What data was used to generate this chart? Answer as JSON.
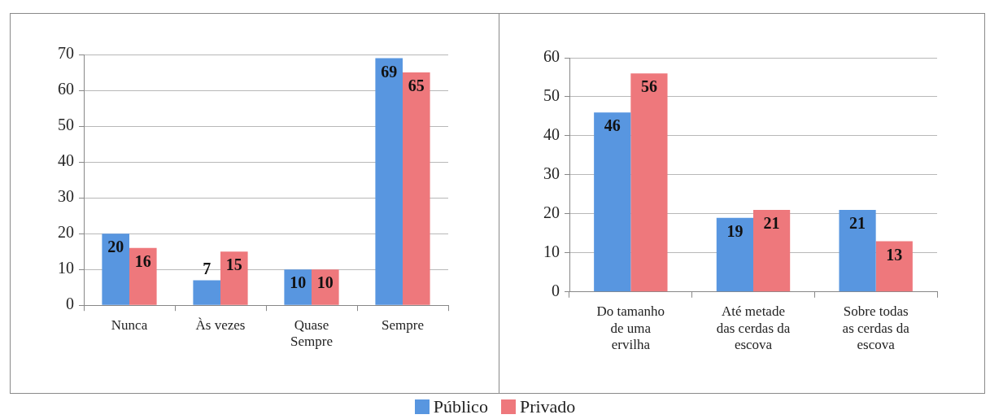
{
  "chart_data": [
    {
      "type": "bar",
      "categories": [
        "Nunca",
        "Às vezes",
        "Quase Sempre",
        "Sempre"
      ],
      "series": [
        {
          "name": "Público",
          "color": "#5896e0",
          "values": [
            20,
            7,
            10,
            69
          ]
        },
        {
          "name": "Privado",
          "color": "#ee787c",
          "values": [
            16,
            15,
            10,
            65
          ]
        }
      ],
      "ylim": [
        0,
        70
      ],
      "yticks": [
        0,
        10,
        20,
        30,
        40,
        50,
        60,
        70
      ],
      "grid": "y",
      "data_labels": true,
      "legend": "bottom"
    },
    {
      "type": "bar",
      "categories": [
        "Do tamanho de uma ervilha",
        "Até metade das cerdas da escova",
        "Sobre todas as cerdas da escova"
      ],
      "series": [
        {
          "name": "Público",
          "color": "#5896e0",
          "values": [
            46,
            19,
            21
          ]
        },
        {
          "name": "Privado",
          "color": "#ee787c",
          "values": [
            56,
            21,
            13
          ]
        }
      ],
      "ylim": [
        0,
        60
      ],
      "yticks": [
        0,
        10,
        20,
        30,
        40,
        50,
        60
      ],
      "grid": "y",
      "data_labels": true,
      "legend": "bottom"
    }
  ]
}
